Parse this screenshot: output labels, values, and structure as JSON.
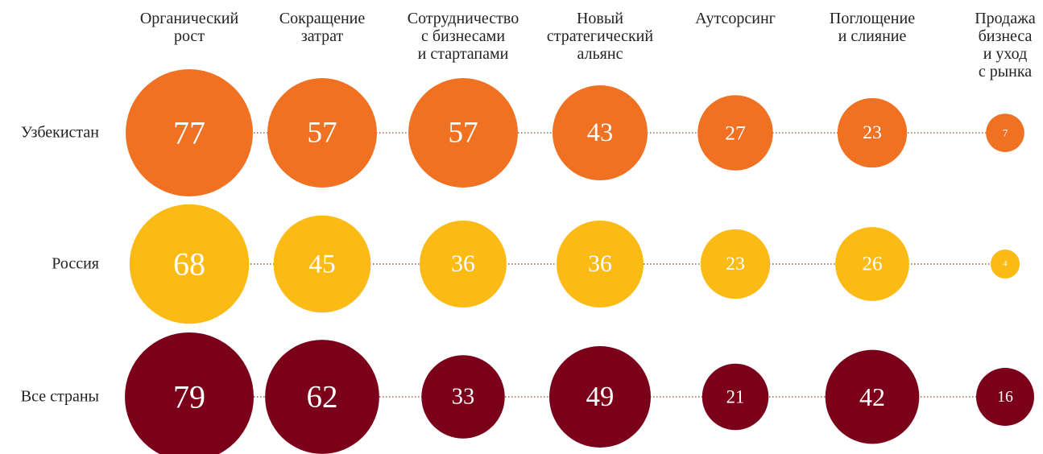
{
  "chart_data": {
    "type": "bubble",
    "categories": [
      "Органический\nрост",
      "Сокращение\nзатрат",
      "Сотрудничество\nс бизнесами\nи стартапами",
      "Новый\nстратегический\nальянс",
      "Аутсорсинг",
      "Поглощение\nи слияние",
      "Продажа\nбизнеса\nи уход\nс рынка"
    ],
    "series": [
      {
        "name": "Узбекистан",
        "color": "#f07122",
        "values": [
          77,
          57,
          57,
          43,
          27,
          23,
          7
        ]
      },
      {
        "name": "Россия",
        "color": "#fbbb14",
        "values": [
          68,
          45,
          36,
          36,
          23,
          26,
          4
        ]
      },
      {
        "name": "Все страны",
        "color": "#7b0019",
        "values": [
          79,
          62,
          33,
          49,
          21,
          42,
          16
        ]
      }
    ]
  }
}
